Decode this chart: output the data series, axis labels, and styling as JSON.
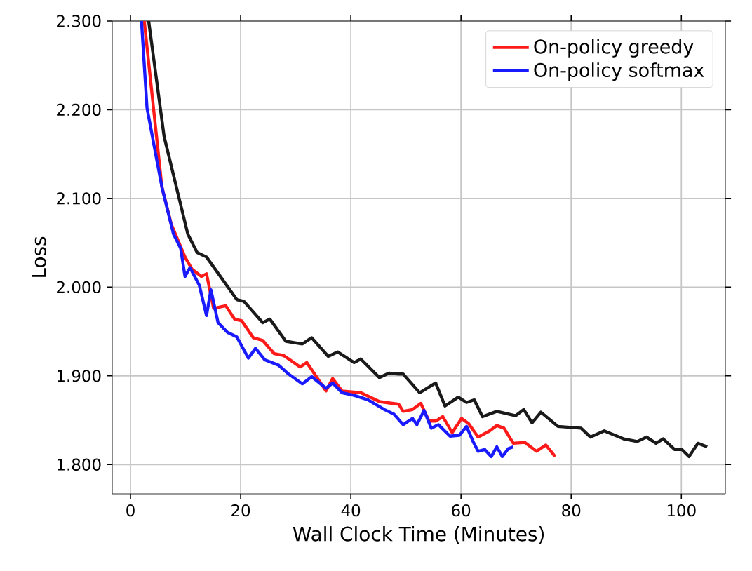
{
  "chart_data": {
    "type": "line",
    "xlabel": "Wall Clock Time (Minutes)",
    "ylabel": "Loss",
    "xlim": [
      -3.3,
      108
    ],
    "ylim": [
      1.767,
      2.3
    ],
    "xticks": [
      0,
      20,
      40,
      60,
      80,
      100
    ],
    "yticks": [
      {
        "value": 1.8,
        "label": "1.800"
      },
      {
        "value": 1.9,
        "label": "1.900"
      },
      {
        "value": 2.0,
        "label": "2.000"
      },
      {
        "value": 2.1,
        "label": "2.100"
      },
      {
        "value": 2.2,
        "label": "2.200"
      },
      {
        "value": 2.3,
        "label": "2.300"
      }
    ],
    "grid": true,
    "legend": "top right",
    "marker": "none",
    "line_style": "solid",
    "series": [
      {
        "color": "#1a1a1a",
        "x": [
          3.3,
          6.1,
          10.4,
          12.1,
          13.8,
          19.3,
          20.6,
          24.0,
          25.3,
          28.2,
          31.2,
          32.9,
          35.9,
          37.6,
          40.6,
          41.8,
          45.2,
          46.9,
          48.7,
          49.5,
          52.5,
          55.4,
          57.1,
          59.5,
          61.0,
          62.4,
          63.9,
          66.5,
          69.9,
          71.4,
          72.9,
          74.5,
          77.6,
          81.8,
          83.5,
          86.0,
          89.5,
          92.0,
          93.7,
          95.4,
          96.7,
          98.8,
          100.1,
          101.4,
          103.0,
          104.7
        ],
        "values": [
          2.3,
          2.17,
          2.06,
          2.039,
          2.034,
          1.986,
          1.984,
          1.96,
          1.964,
          1.939,
          1.936,
          1.943,
          1.922,
          1.927,
          1.915,
          1.919,
          1.898,
          1.903,
          1.902,
          1.902,
          1.881,
          1.892,
          1.866,
          1.876,
          1.87,
          1.873,
          1.854,
          1.86,
          1.855,
          1.862,
          1.847,
          1.859,
          1.843,
          1.841,
          1.831,
          1.838,
          1.829,
          1.826,
          1.831,
          1.824,
          1.829,
          1.817,
          1.817,
          1.809,
          1.824,
          1.82
        ]
      },
      {
        "name": "On-policy greedy",
        "color": "#ff1a1a",
        "x": [
          2.5,
          5.7,
          7.4,
          9.9,
          11.2,
          12.9,
          13.8,
          15.1,
          17.3,
          18.9,
          20.2,
          22.3,
          24.0,
          26.1,
          27.8,
          30.8,
          32.0,
          35.5,
          36.7,
          38.4,
          41.8,
          45.2,
          48.7,
          49.5,
          51.2,
          52.7,
          54.2,
          55.4,
          56.7,
          58.4,
          60.1,
          61.4,
          63.1,
          65.2,
          66.5,
          67.8,
          69.5,
          71.6,
          73.7,
          75.4,
          77.1
        ],
        "values": [
          2.3,
          2.113,
          2.071,
          2.034,
          2.02,
          2.012,
          2.015,
          1.976,
          1.979,
          1.964,
          1.962,
          1.943,
          1.94,
          1.925,
          1.923,
          1.91,
          1.915,
          1.883,
          1.897,
          1.883,
          1.881,
          1.871,
          1.868,
          1.86,
          1.862,
          1.869,
          1.849,
          1.849,
          1.854,
          1.836,
          1.852,
          1.846,
          1.831,
          1.838,
          1.844,
          1.841,
          1.824,
          1.825,
          1.815,
          1.822,
          1.809
        ]
      },
      {
        "name": "On-policy softmax",
        "color": "#1a1aff",
        "x": [
          2.0,
          3.0,
          5.7,
          7.8,
          9.1,
          9.9,
          10.8,
          12.5,
          13.8,
          14.6,
          15.9,
          17.6,
          19.3,
          21.4,
          22.7,
          24.4,
          26.9,
          28.7,
          31.2,
          32.9,
          35.5,
          36.7,
          38.4,
          40.6,
          43.1,
          46.1,
          47.8,
          49.5,
          51.2,
          52.0,
          53.3,
          54.6,
          55.9,
          58.0,
          59.7,
          61.0,
          62.2,
          63.1,
          64.3,
          65.5,
          66.5,
          67.5,
          68.6,
          69.5
        ],
        "values": [
          2.3,
          2.202,
          2.113,
          2.06,
          2.044,
          2.012,
          2.022,
          2.002,
          1.968,
          1.997,
          1.96,
          1.949,
          1.944,
          1.92,
          1.931,
          1.918,
          1.912,
          1.902,
          1.891,
          1.899,
          1.886,
          1.892,
          1.881,
          1.878,
          1.873,
          1.862,
          1.857,
          1.845,
          1.852,
          1.845,
          1.861,
          1.841,
          1.845,
          1.832,
          1.833,
          1.843,
          1.826,
          1.815,
          1.817,
          1.809,
          1.82,
          1.809,
          1.818,
          1.82
        ]
      }
    ]
  }
}
